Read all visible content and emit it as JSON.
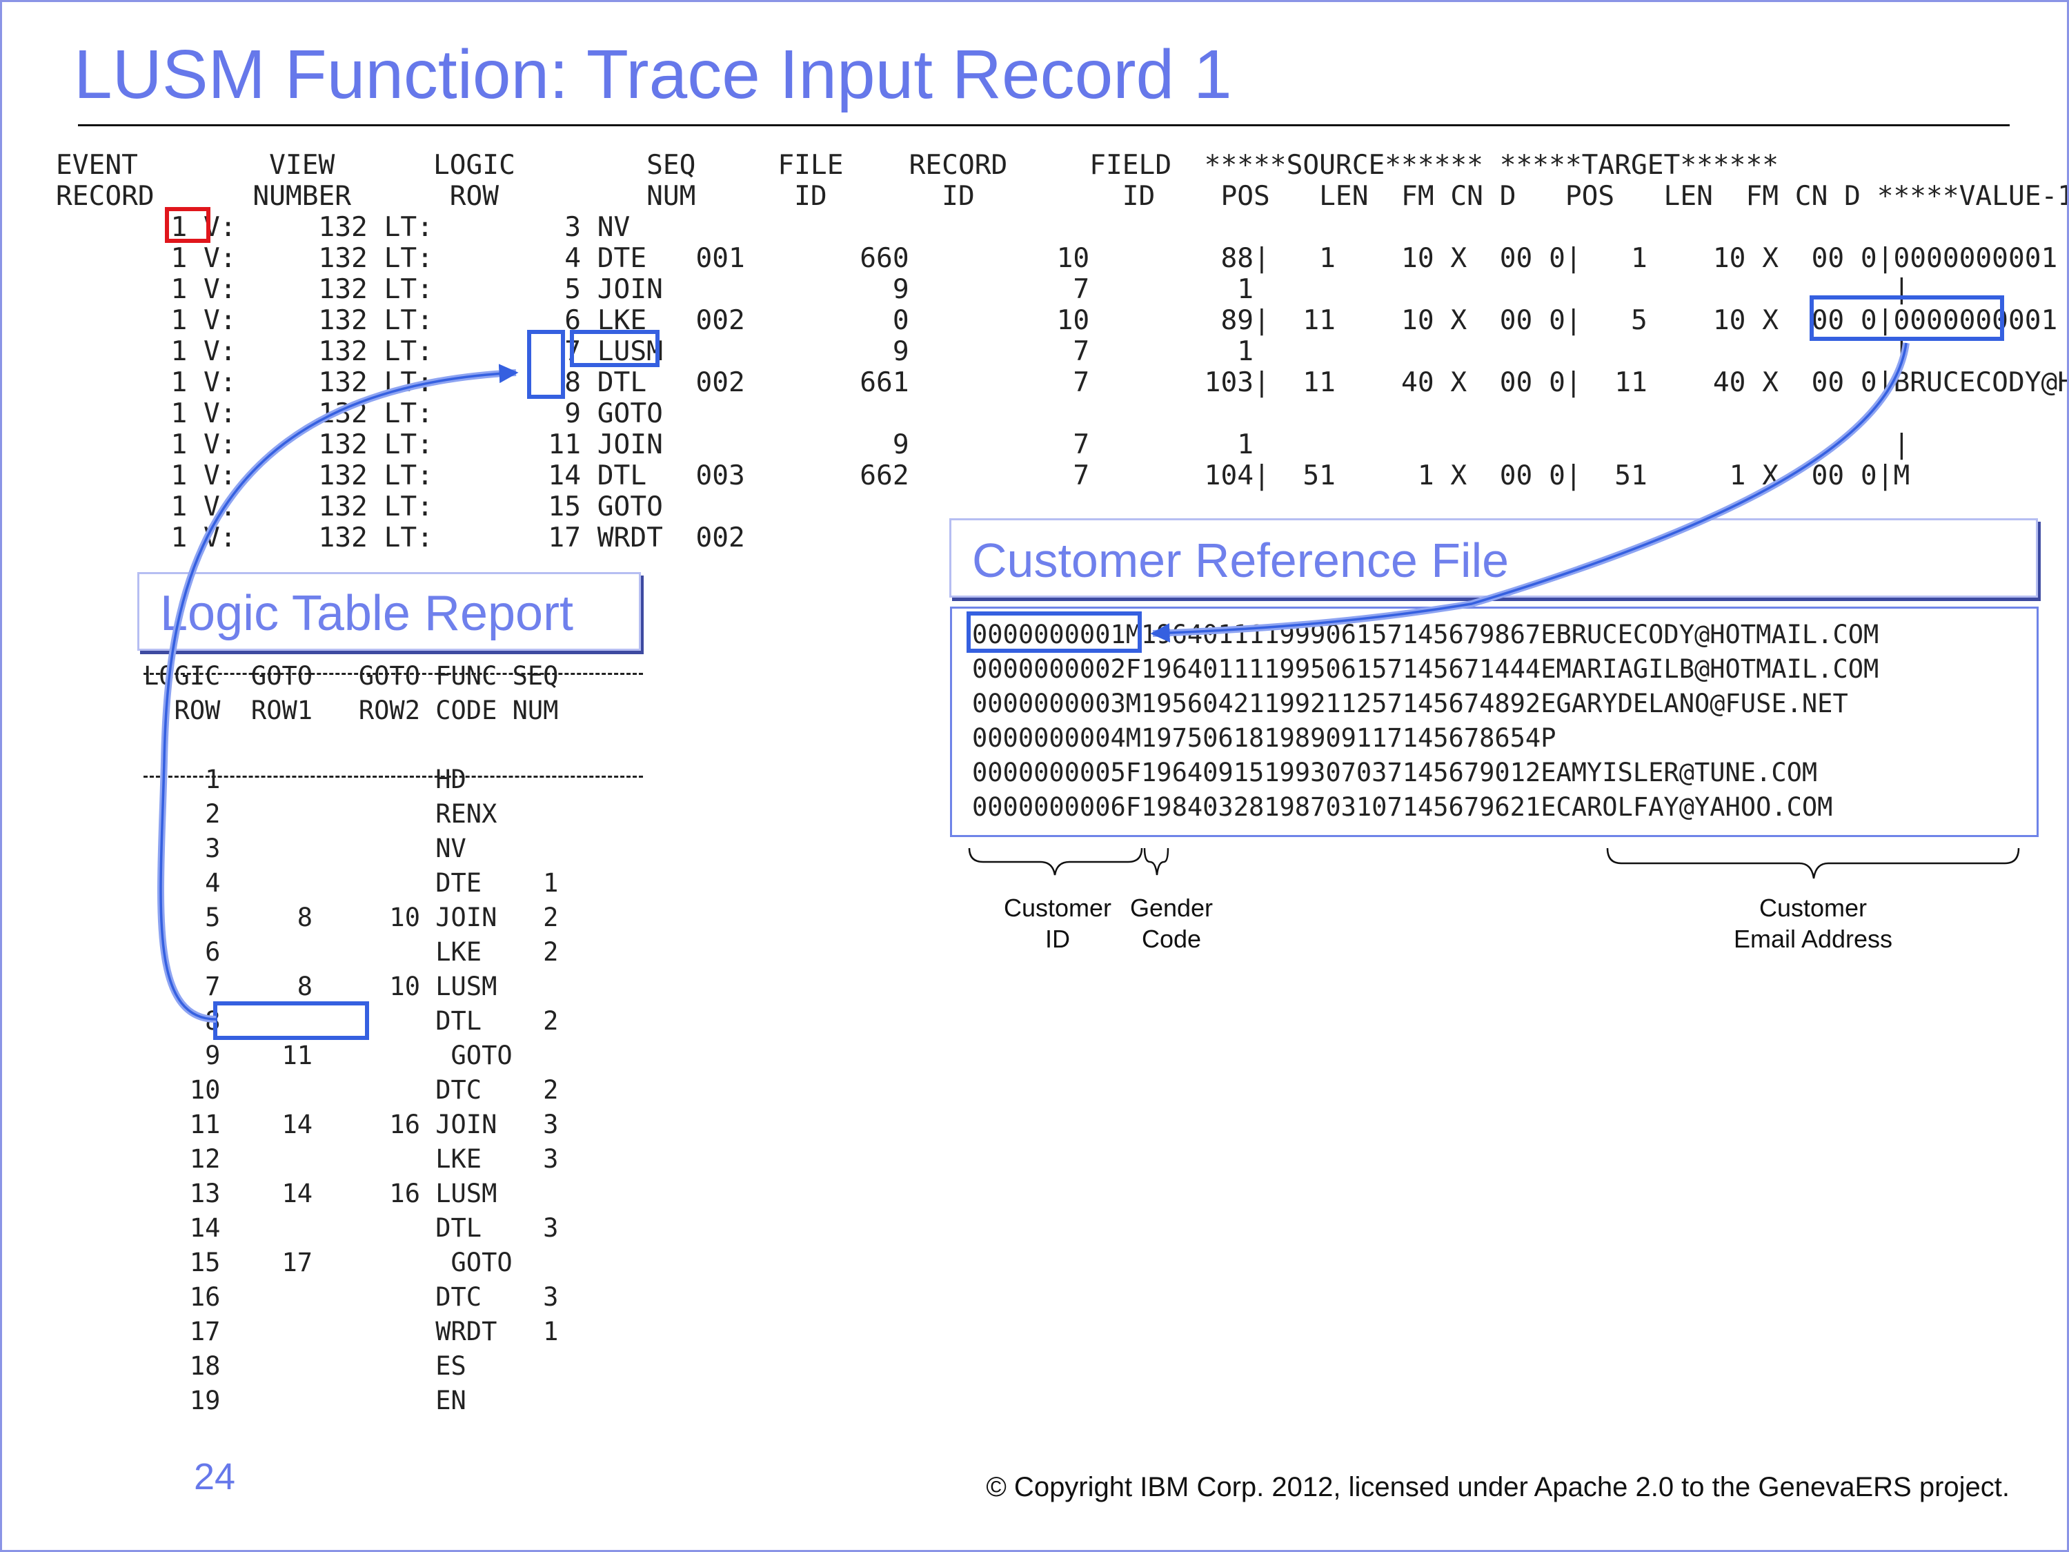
{
  "slide": {
    "title": "LUSM Function: Trace Input Record 1",
    "page_number": "24",
    "copyright": "© Copyright IBM Corp. 2012, licensed under Apache 2.0 to the GenevaERS project."
  },
  "trace_report": {
    "header_1": "EVENT        VIEW      LOGIC        SEQ     FILE    RECORD     FIELD  *****SOURCE****** *****TARGET******",
    "header_2": "RECORD      NUMBER      ROW         NUM      ID       ID         ID    POS   LEN  FM CN D   POS   LEN  FM CN D *****VALUE-1",
    "rows": [
      "       1 V:     132 LT:        3 NV",
      "       1 V:     132 LT:        4 DTE   001       660         10        88|   1    10 X  00 0|   1    10 X  00 0|0000000001",
      "       1 V:     132 LT:        5 JOIN              9          7         1                                       |",
      "       1 V:     132 LT:        6 LKE   002         0         10        89|  11    10 X  00 0|   5    10 X  00 0|0000000001",
      "       1 V:     132 LT:        7 LUSM              9          7         1                                       |",
      "       1 V:     132 LT:        8 DTL   002       661          7       103|  11    40 X  00 0|  11    40 X  00 0|BRUCECODY@H",
      "       1 V:     132 LT:        9 GOTO",
      "       1 V:     132 LT:       11 JOIN              9          7         1                                       |",
      "       1 V:     132 LT:       14 DTL   003       662          7       104|  51     1 X  00 0|  51     1 X  00 0|M",
      "       1 V:     132 LT:       15 GOTO",
      "       1 V:     132 LT:       17 WRDT  002"
    ]
  },
  "logic_table": {
    "title": "Logic Table Report",
    "header_1": "LOGIC  GOTO   GOTO FUNC SEQ",
    "header_2": "  ROW  ROW1   ROW2 CODE NUM",
    "rows": [
      "    1              HD",
      "    2              RENX",
      "    3              NV",
      "    4              DTE    1",
      "    5     8     10 JOIN   2",
      "    6              LKE    2",
      "    7     8     10 LUSM",
      "    8              DTL    2",
      "    9    11         GOTO",
      "   10              DTC    2",
      "   11    14     16 JOIN   3",
      "   12              LKE    3",
      "   13    14     16 LUSM",
      "   14              DTL    3",
      "   15    17         GOTO",
      "   16              DTC    3",
      "   17              WRDT   1",
      "   18              ES",
      "   19              EN"
    ]
  },
  "customer_reference_file": {
    "title": "Customer Reference File",
    "records": [
      "0000000001M19640111199906157145679867EBRUCECODY@HOTMAIL.COM",
      "0000000002F19640111199506157145671444EMARIAGILB@HOTMAIL.COM",
      "0000000003M19560421199211257145674892EGARYDELANO@FUSE.NET",
      "0000000004M197506181989091171456786​54P",
      "0000000005F19640915199307037145679012EAMYISLER@TUNE.COM",
      "0000000006F19840328198703107145679621ECAROLFAY@YAHOO.COM"
    ],
    "captions": {
      "customer_id": "Customer\nID",
      "gender_code": "Gender\nCode",
      "email_address": "Customer\nEmail Address"
    }
  },
  "colors": {
    "title": "#6678ea",
    "highlight_blue": "#3560e0",
    "highlight_red": "#e0161c",
    "slide_border": "#8a94e6"
  }
}
